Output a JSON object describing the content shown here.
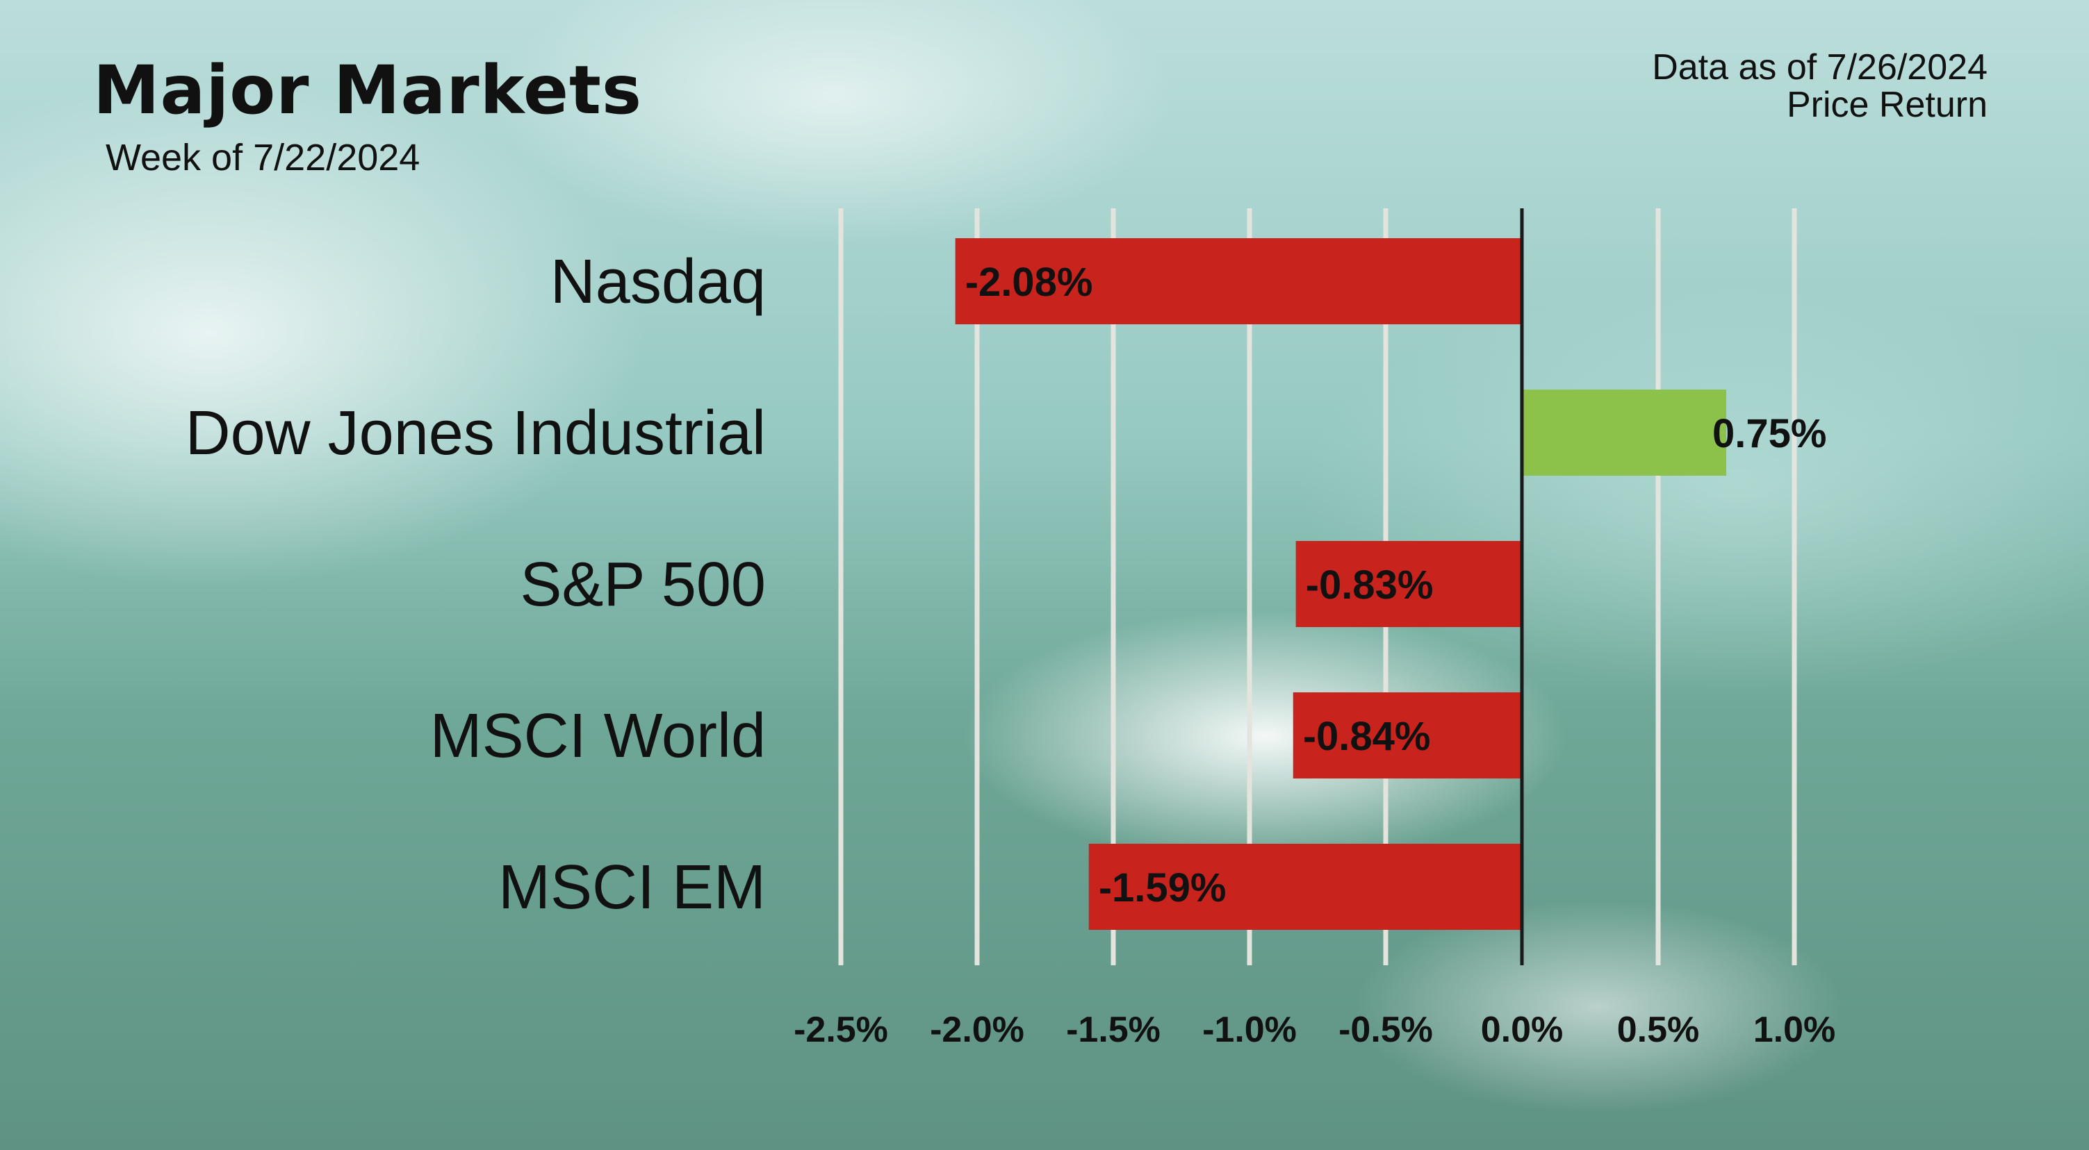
{
  "header": {
    "title": "Major Markets",
    "subtitle": "Week of 7/22/2024"
  },
  "info": {
    "data_as_of": "Data as of 7/26/2024",
    "return_type": "Price Return"
  },
  "colors": {
    "negative": "#c8231c",
    "positive": "#8dc24a",
    "gridline": "#e4e4df",
    "zero_axis": "#1a1a1a"
  },
  "chart_data": {
    "type": "bar",
    "orientation": "horizontal",
    "title": "Major Markets",
    "subtitle": "Week of 7/22/2024",
    "categories": [
      "Nasdaq",
      "Dow Jones Industrial",
      "S&P 500",
      "MSCI World",
      "MSCI EM"
    ],
    "values": [
      -2.08,
      0.75,
      -0.83,
      -0.84,
      -1.59
    ],
    "value_labels": [
      "-2.08%",
      "0.75%",
      "-0.83%",
      "-0.84%",
      "-1.59%"
    ],
    "xlim": [
      -2.5,
      1.0
    ],
    "x_ticks": [
      -2.5,
      -2.0,
      -1.5,
      -1.0,
      -0.5,
      0.0,
      0.5,
      1.0
    ],
    "x_tick_labels": [
      "-2.5%",
      "-2.0%",
      "-1.5%",
      "-1.0%",
      "-0.5%",
      "0.0%",
      "0.5%",
      "1.0%"
    ],
    "grid": true,
    "legend": "none"
  }
}
